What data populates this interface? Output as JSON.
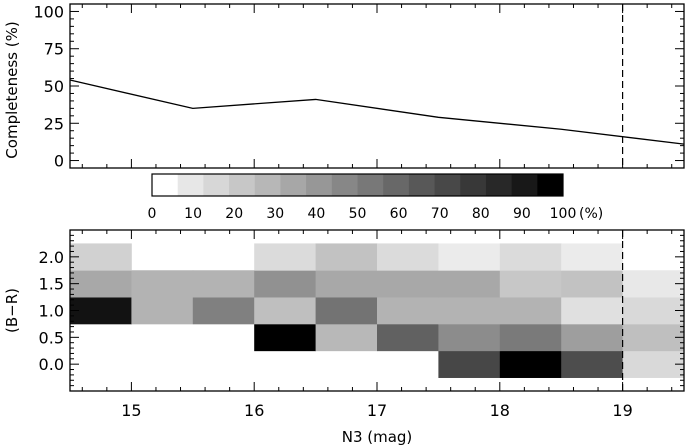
{
  "chart_data": [
    {
      "type": "line",
      "ylabel": "Completeness (%)",
      "ylim": [
        -5,
        105
      ],
      "xlim": [
        14.5,
        19.5
      ],
      "yticks": [
        "0",
        "25",
        "50",
        "75",
        "100"
      ],
      "x": [
        14.5,
        15.5,
        16.5,
        17.5,
        18.5,
        19.5
      ],
      "values": [
        54,
        35,
        41,
        29,
        21,
        11
      ],
      "reference_line_x": 19.0,
      "reference_line_style": "dashed"
    },
    {
      "type": "colorbar",
      "tick_labels": [
        "0",
        "10",
        "20",
        "30",
        "40",
        "50",
        "60",
        "70",
        "80",
        "90",
        "100"
      ],
      "unit": "(%)",
      "range": [
        0,
        100
      ],
      "steps": 16
    },
    {
      "type": "heatmap",
      "xlabel": "N3 (mag)",
      "ylabel": "(B−R)",
      "xlim": [
        14.5,
        19.5
      ],
      "ylim": [
        -0.5,
        2.5
      ],
      "xticks": [
        "15",
        "16",
        "17",
        "18",
        "19"
      ],
      "yticks": [
        "0.0",
        "0.5",
        "1.0",
        "1.5",
        "2.0"
      ],
      "x_bin_width": 0.5,
      "y_bin_width": 0.5,
      "x_bin_starts": [
        14.5,
        15.0,
        15.5,
        16.0,
        16.5,
        17.0,
        17.5,
        18.0,
        18.5,
        19.0
      ],
      "y_bin_starts": [
        -0.25,
        0.25,
        0.75,
        1.25,
        1.75
      ],
      "values": [
        [
          0,
          0,
          0,
          0,
          0,
          0,
          72,
          100,
          70,
          15
        ],
        [
          0,
          0,
          0,
          100,
          28,
          62,
          45,
          52,
          38,
          25
        ],
        [
          93,
          30,
          50,
          25,
          55,
          30,
          30,
          30,
          12,
          15
        ],
        [
          34,
          30,
          30,
          43,
          34,
          34,
          34,
          22,
          24,
          9
        ],
        [
          18,
          0,
          0,
          14,
          24,
          14,
          8,
          14,
          8,
          0
        ]
      ],
      "reference_line_x": 19.0,
      "reference_line_style": "dashed"
    }
  ]
}
